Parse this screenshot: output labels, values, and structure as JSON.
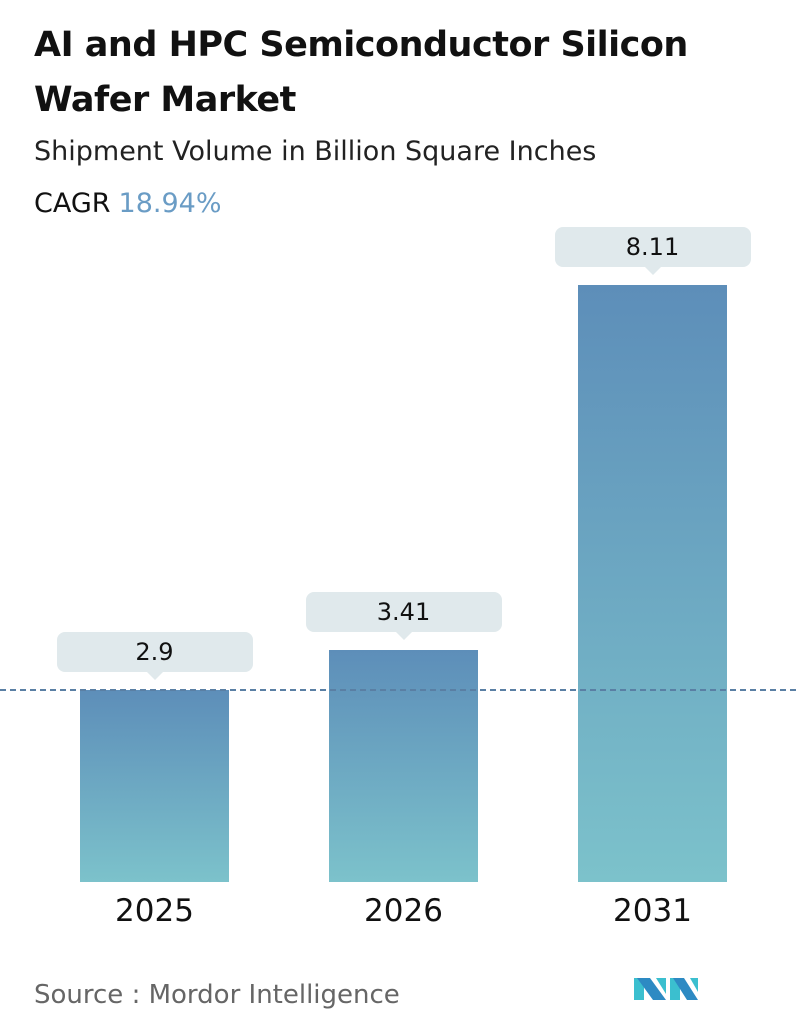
{
  "title": "AI and HPC Semiconductor Silicon Wafer Market",
  "subtitle": "Shipment Volume in Billion Square Inches",
  "cagr": {
    "label": "CAGR",
    "value": "18.94%"
  },
  "source": "Source :  Mordor Intelligence",
  "logo": "Mordor Intelligence logo",
  "colors": {
    "bar_top": "#5d8eb9",
    "bar_bottom": "#7cc2cb",
    "cagr": "#6a9cc5",
    "label_bg": "#e0e9ec",
    "reference_line": "#5a7fa4"
  },
  "chart_data": {
    "type": "bar",
    "categories": [
      "2025",
      "2026",
      "2031"
    ],
    "values": [
      2.9,
      3.41,
      8.11
    ],
    "value_labels": [
      "2.9",
      "3.41",
      "8.11"
    ],
    "reference_line": "dashed line at 2025 value",
    "grid": false,
    "legend": "none"
  }
}
